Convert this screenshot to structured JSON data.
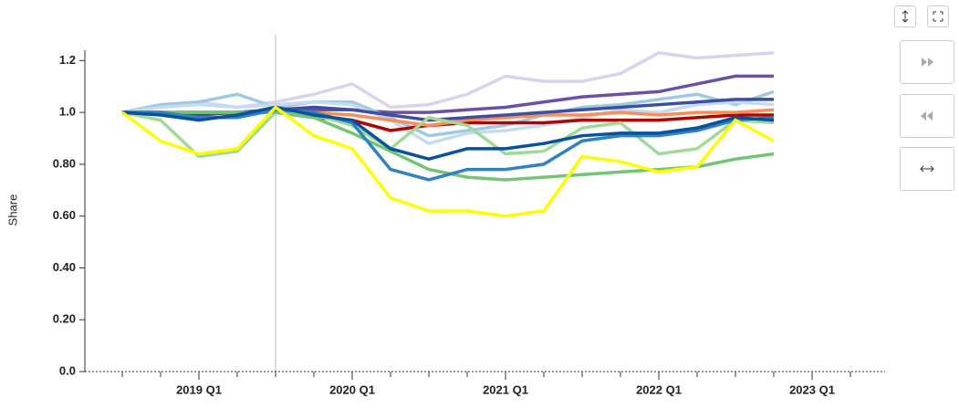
{
  "chart_data": {
    "type": "line",
    "y_label": "Share",
    "categories": [
      null,
      null,
      null,
      "2019 Q1",
      null,
      null,
      null,
      "2020 Q1",
      null,
      null,
      null,
      "2021 Q1",
      null,
      null,
      null,
      "2022 Q1",
      null,
      null,
      null,
      "2023 Q1",
      null,
      null
    ],
    "ylim": [
      0,
      1.24
    ],
    "yticks": [
      {
        "value": 0,
        "label": "0.0"
      },
      {
        "value": 0.2,
        "label": "0.20"
      },
      {
        "value": 0.4,
        "label": "0.40"
      },
      {
        "value": 0.6,
        "label": "0.60"
      },
      {
        "value": 0.8,
        "label": "0.80"
      },
      {
        "value": 1,
        "label": "1.0"
      },
      {
        "value": 1.2,
        "label": "1.2"
      }
    ],
    "series": [
      {
        "color": "#d8d4ee",
        "values": [
          null,
          1.0,
          1.02,
          1.04,
          1.02,
          1.04,
          1.07,
          1.11,
          1.02,
          1.03,
          1.07,
          1.14,
          1.12,
          1.12,
          1.15,
          1.23,
          1.21,
          1.22,
          1.23,
          null,
          null,
          null
        ]
      },
      {
        "color": "#6a51a3",
        "values": [
          null,
          1.0,
          1.0,
          1.0,
          1.0,
          1.01,
          1.01,
          1.01,
          1.0,
          1.0,
          1.01,
          1.02,
          1.04,
          1.06,
          1.07,
          1.08,
          1.11,
          1.14,
          1.14,
          null,
          null,
          null
        ]
      },
      {
        "color": "#9ecae1",
        "values": [
          null,
          1.0,
          1.03,
          1.04,
          1.07,
          1.02,
          1.04,
          1.04,
          0.98,
          0.91,
          0.93,
          0.95,
          0.99,
          1.02,
          1.03,
          1.05,
          1.07,
          1.03,
          1.08,
          null,
          null,
          null
        ]
      },
      {
        "color": "#c6dbef",
        "values": [
          null,
          1.0,
          1.02,
          1.03,
          1.02,
          1.03,
          1.04,
          1.03,
          0.97,
          0.88,
          0.92,
          0.93,
          0.95,
          0.98,
          1.01,
          1.0,
          1.03,
          1.04,
          1.03,
          null,
          null,
          null
        ]
      },
      {
        "color": "#b30000",
        "values": [
          null,
          1.0,
          1.0,
          1.0,
          1.0,
          1.0,
          0.98,
          0.97,
          0.93,
          0.95,
          0.96,
          0.96,
          0.96,
          0.97,
          0.97,
          0.97,
          0.98,
          0.99,
          0.99,
          null,
          null,
          null
        ]
      },
      {
        "color": "#fc8d59",
        "values": [
          null,
          1.0,
          1.0,
          1.0,
          1.0,
          1.0,
          1.0,
          0.99,
          0.97,
          0.95,
          0.97,
          0.98,
          0.99,
          0.99,
          1.0,
          0.99,
          1.0,
          1.0,
          1.01,
          null,
          null,
          null
        ]
      },
      {
        "color": "#3f4fa0",
        "values": [
          null,
          1.0,
          1.0,
          0.99,
          1.0,
          1.01,
          1.02,
          1.01,
          0.99,
          0.97,
          0.98,
          0.99,
          1.0,
          1.01,
          1.02,
          1.03,
          1.04,
          1.05,
          1.05,
          null,
          null,
          null
        ]
      },
      {
        "color": "#a1d99b",
        "values": [
          null,
          1.0,
          0.97,
          0.83,
          0.85,
          1.0,
          0.99,
          0.95,
          0.86,
          0.98,
          0.95,
          0.84,
          0.85,
          0.94,
          0.96,
          0.84,
          0.86,
          0.97,
          0.96,
          null,
          null,
          null
        ]
      },
      {
        "color": "#74c476",
        "values": [
          null,
          1.0,
          1.0,
          1.0,
          1.0,
          1.0,
          0.98,
          0.92,
          0.85,
          0.78,
          0.75,
          0.74,
          0.75,
          0.76,
          0.77,
          0.78,
          0.79,
          0.82,
          0.84,
          null,
          null,
          null
        ]
      },
      {
        "color": "#3182bd",
        "values": [
          null,
          1.0,
          1.0,
          0.98,
          0.98,
          1.01,
          1.0,
          0.96,
          0.78,
          0.74,
          0.78,
          0.78,
          0.8,
          0.89,
          0.91,
          0.91,
          0.93,
          0.97,
          0.98,
          null,
          null,
          null
        ]
      },
      {
        "color": "#08519c",
        "values": [
          null,
          1.0,
          0.99,
          0.97,
          0.99,
          1.02,
          0.99,
          0.97,
          0.86,
          0.82,
          0.86,
          0.86,
          0.88,
          0.91,
          0.92,
          0.92,
          0.94,
          0.98,
          0.97,
          null,
          null,
          null
        ]
      },
      {
        "color": "#ffff00",
        "values": [
          null,
          1.0,
          0.89,
          0.84,
          0.86,
          1.02,
          0.91,
          0.86,
          0.67,
          0.62,
          0.62,
          0.6,
          0.62,
          0.83,
          0.81,
          0.77,
          0.79,
          0.97,
          0.89,
          null,
          null,
          null
        ]
      }
    ]
  }
}
